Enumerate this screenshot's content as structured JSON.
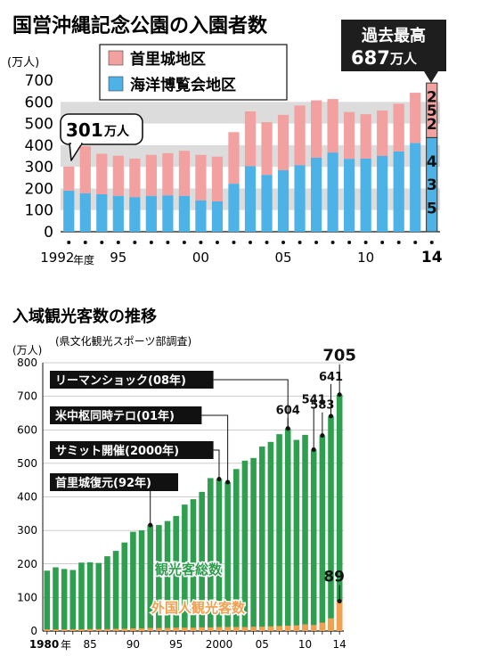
{
  "chart_data": [
    {
      "type": "bar",
      "title": "国営沖縄記念公園の入園者数",
      "ylabel": "(万人)",
      "ylim": [
        0,
        700
      ],
      "yticks": [
        0,
        100,
        200,
        300,
        400,
        500,
        600,
        700
      ],
      "x": [
        1992,
        1993,
        1994,
        1995,
        1996,
        1997,
        1998,
        1999,
        2000,
        2001,
        2002,
        2003,
        2004,
        2005,
        2006,
        2007,
        2008,
        2009,
        2010,
        2011,
        2012,
        2013,
        2014
      ],
      "x_tick_labels": [
        {
          "year": 1992,
          "label": "1992"
        },
        {
          "year": 1995,
          "label": "95"
        },
        {
          "year": 2000,
          "label": "00"
        },
        {
          "year": 2005,
          "label": "05"
        },
        {
          "year": 2010,
          "label": "10"
        },
        {
          "year": 2014,
          "label": "14"
        }
      ],
      "x_unit_label": "年度",
      "grid": "horizontal bands",
      "legend_position": "top-left",
      "stacked": true,
      "colors": {
        "shuri": "#f2a0a0",
        "kaiyo": "#4db3e6",
        "band": "#dcdcdc"
      },
      "series": [
        {
          "name": "海洋博覧会地区",
          "values": [
            190,
            178,
            173,
            166,
            160,
            166,
            168,
            166,
            145,
            140,
            222,
            303,
            263,
            284,
            308,
            342,
            366,
            337,
            338,
            350,
            371,
            410,
            435
          ]
        },
        {
          "name": "首里城地区",
          "values": [
            111,
            217,
            187,
            185,
            178,
            189,
            195,
            208,
            210,
            207,
            238,
            253,
            243,
            256,
            275,
            265,
            247,
            216,
            205,
            210,
            220,
            232,
            252
          ]
        }
      ],
      "annotations": {
        "first_total": {
          "value": "301",
          "unit": "万人"
        },
        "record_title": "過去最高",
        "record_value": "687",
        "record_unit": "万人",
        "label_2014_shuri": "252",
        "label_2014_kaiyo": "435"
      }
    },
    {
      "type": "bar",
      "title": "入域観光客数の推移",
      "subtitle": "(県文化観光スポーツ部調査)",
      "ylabel": "(万人)",
      "ylim": [
        0,
        800
      ],
      "yticks": [
        0,
        100,
        200,
        300,
        400,
        500,
        600,
        700,
        800
      ],
      "x": [
        1980,
        1981,
        1982,
        1983,
        1984,
        1985,
        1986,
        1987,
        1988,
        1989,
        1990,
        1991,
        1992,
        1993,
        1994,
        1995,
        1996,
        1997,
        1998,
        1999,
        2000,
        2001,
        2002,
        2003,
        2004,
        2005,
        2006,
        2007,
        2008,
        2009,
        2010,
        2011,
        2012,
        2013,
        2014
      ],
      "x_tick_labels": [
        {
          "year": 1980,
          "label": "1980"
        },
        {
          "year": 1985,
          "label": "85"
        },
        {
          "year": 1990,
          "label": "90"
        },
        {
          "year": 1995,
          "label": "95"
        },
        {
          "year": 2000,
          "label": "2000"
        },
        {
          "year": 2005,
          "label": "05"
        },
        {
          "year": 2010,
          "label": "10"
        },
        {
          "year": 2014,
          "label": "14"
        }
      ],
      "x_unit_label": "年",
      "grid": "horizontal lines",
      "colors": {
        "total": "#2e9e4f",
        "foreign": "#f0a050"
      },
      "series": [
        {
          "name": "観光客総数",
          "values": [
            180,
            190,
            185,
            182,
            204,
            205,
            203,
            223,
            239,
            264,
            296,
            300,
            316,
            316,
            328,
            343,
            377,
            393,
            415,
            456,
            453,
            444,
            483,
            508,
            516,
            550,
            564,
            587,
            604,
            570,
            585,
            541,
            583,
            641,
            705
          ]
        },
        {
          "name": "外国人観光客数",
          "values": [
            5,
            5,
            5,
            5,
            5,
            6,
            6,
            6,
            7,
            7,
            8,
            8,
            9,
            9,
            9,
            10,
            10,
            10,
            11,
            11,
            12,
            12,
            12,
            12,
            13,
            13,
            14,
            15,
            16,
            17,
            20,
            18,
            25,
            38,
            89
          ]
        }
      ],
      "annotations": [
        {
          "label": "リーマンショック(08年)",
          "year": 2008
        },
        {
          "label": "米中枢同時テロ(01年)",
          "year": 2001
        },
        {
          "label": "サミット開催(2000年)",
          "year": 2000
        },
        {
          "label": "首里城復元(92年)",
          "year": 1992
        }
      ],
      "value_labels": [
        {
          "year": 2008,
          "text": "604"
        },
        {
          "year": 2011,
          "text": "541"
        },
        {
          "year": 2012,
          "text": "583"
        },
        {
          "year": 2013,
          "text": "641"
        },
        {
          "year": 2014,
          "text": "705"
        },
        {
          "year": 2014,
          "text": "89",
          "series": "foreign"
        }
      ]
    }
  ]
}
